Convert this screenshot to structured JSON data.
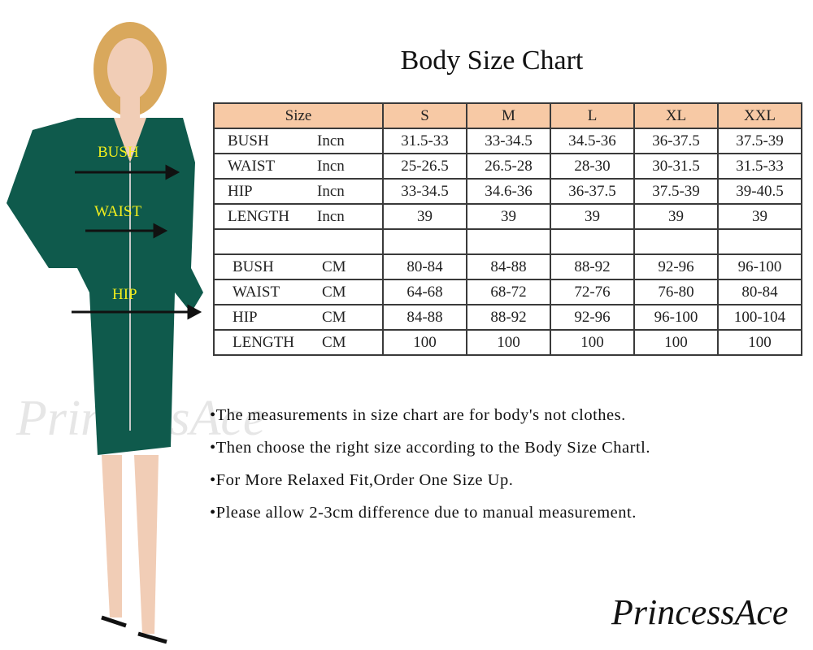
{
  "title": "Body Size Chart",
  "body_labels": {
    "bust": "BUSH",
    "waist": "WAIST",
    "hip": "HIP"
  },
  "colors": {
    "header_bg": "#f7c9a5",
    "dress": "#0f5a4c",
    "label": "#f2ee1c"
  },
  "table": {
    "header": {
      "label": "Size",
      "sizes": [
        "S",
        "M",
        "L",
        "XL",
        "XXL"
      ]
    },
    "inch_rows": [
      {
        "name": "BUSH",
        "unit": "Incn",
        "values": [
          "31.5-33",
          "33-34.5",
          "34.5-36",
          "36-37.5",
          "37.5-39"
        ]
      },
      {
        "name": "WAIST",
        "unit": "Incn",
        "values": [
          "25-26.5",
          "26.5-28",
          "28-30",
          "30-31.5",
          "31.5-33"
        ]
      },
      {
        "name": "HIP",
        "unit": "Incn",
        "values": [
          "33-34.5",
          "34.6-36",
          "36-37.5",
          "37.5-39",
          "39-40.5"
        ]
      },
      {
        "name": "LENGTH",
        "unit": "Incn",
        "values": [
          "39",
          "39",
          "39",
          "39",
          "39"
        ]
      }
    ],
    "cm_rows": [
      {
        "name": "BUSH",
        "unit": "CM",
        "values": [
          "80-84",
          "84-88",
          "88-92",
          "92-96",
          "96-100"
        ]
      },
      {
        "name": "WAIST",
        "unit": "CM",
        "values": [
          "64-68",
          "68-72",
          "72-76",
          "76-80",
          "80-84"
        ]
      },
      {
        "name": "HIP",
        "unit": "CM",
        "values": [
          "84-88",
          "88-92",
          "92-96",
          "96-100",
          "100-104"
        ]
      },
      {
        "name": "LENGTH",
        "unit": "CM",
        "values": [
          "100",
          "100",
          "100",
          "100",
          "100"
        ]
      }
    ]
  },
  "notes": [
    "•The measurements in size chart are for body's not clothes.",
    "•Then choose the right size according to the Body Size Chartl.",
    "•For More Relaxed Fit,Order One Size Up.",
    "•Please allow 2-3cm difference due to manual measurement."
  ],
  "brand": "PrincessAce"
}
